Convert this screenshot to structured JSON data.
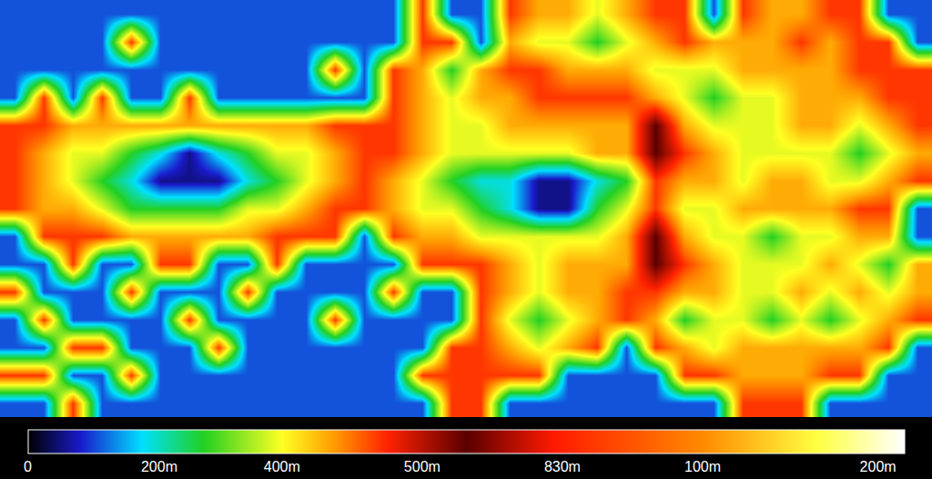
{
  "chart_data": {
    "type": "heatmap",
    "tick_labels": false,
    "cells": [
      [
        8,
        8,
        8,
        8,
        8,
        8,
        8,
        8,
        8,
        8,
        8,
        8,
        8,
        8,
        40,
        8,
        8,
        40,
        34,
        34,
        28,
        34,
        40,
        40,
        8,
        40,
        34,
        34,
        40,
        40,
        8,
        8
      ],
      [
        8,
        8,
        8,
        8,
        40,
        8,
        8,
        8,
        8,
        8,
        8,
        8,
        8,
        8,
        40,
        40,
        8,
        34,
        28,
        28,
        20,
        28,
        34,
        40,
        34,
        34,
        34,
        40,
        34,
        40,
        40,
        8
      ],
      [
        8,
        8,
        8,
        8,
        8,
        8,
        8,
        8,
        8,
        8,
        8,
        40,
        8,
        40,
        34,
        20,
        34,
        40,
        40,
        34,
        34,
        34,
        28,
        28,
        28,
        34,
        34,
        34,
        34,
        40,
        40,
        40
      ],
      [
        8,
        40,
        8,
        40,
        8,
        8,
        40,
        8,
        8,
        8,
        8,
        8,
        8,
        40,
        34,
        28,
        34,
        34,
        40,
        40,
        40,
        40,
        34,
        28,
        20,
        28,
        28,
        34,
        34,
        34,
        40,
        40
      ],
      [
        40,
        40,
        34,
        34,
        34,
        34,
        34,
        34,
        34,
        34,
        34,
        40,
        40,
        40,
        34,
        28,
        28,
        34,
        34,
        34,
        34,
        34,
        50,
        34,
        28,
        28,
        28,
        34,
        34,
        28,
        34,
        40
      ],
      [
        40,
        34,
        28,
        28,
        20,
        14,
        4,
        14,
        20,
        28,
        28,
        34,
        40,
        40,
        34,
        28,
        28,
        28,
        28,
        28,
        34,
        34,
        50,
        40,
        34,
        28,
        28,
        28,
        28,
        20,
        28,
        34
      ],
      [
        40,
        34,
        28,
        20,
        14,
        4,
        4,
        4,
        14,
        20,
        28,
        34,
        40,
        34,
        28,
        20,
        14,
        14,
        4,
        4,
        14,
        20,
        40,
        34,
        34,
        28,
        34,
        34,
        28,
        28,
        34,
        40
      ],
      [
        40,
        34,
        34,
        28,
        20,
        20,
        20,
        20,
        28,
        28,
        34,
        40,
        40,
        34,
        28,
        28,
        20,
        14,
        4,
        4,
        20,
        28,
        40,
        28,
        28,
        34,
        34,
        34,
        34,
        40,
        40,
        8
      ],
      [
        8,
        40,
        40,
        40,
        34,
        34,
        34,
        34,
        34,
        40,
        40,
        40,
        8,
        40,
        34,
        34,
        28,
        28,
        28,
        28,
        28,
        34,
        50,
        34,
        28,
        28,
        20,
        28,
        28,
        34,
        34,
        8
      ],
      [
        8,
        8,
        40,
        8,
        8,
        40,
        40,
        8,
        8,
        40,
        8,
        8,
        8,
        8,
        40,
        40,
        40,
        34,
        28,
        34,
        34,
        34,
        50,
        40,
        34,
        28,
        28,
        28,
        34,
        28,
        20,
        34
      ],
      [
        40,
        8,
        8,
        8,
        40,
        8,
        8,
        8,
        40,
        8,
        8,
        8,
        8,
        40,
        8,
        8,
        40,
        34,
        28,
        34,
        34,
        40,
        40,
        34,
        34,
        28,
        28,
        34,
        28,
        34,
        28,
        34
      ],
      [
        8,
        40,
        8,
        8,
        8,
        8,
        40,
        8,
        8,
        8,
        8,
        40,
        8,
        8,
        8,
        8,
        40,
        28,
        20,
        28,
        34,
        40,
        34,
        20,
        28,
        28,
        20,
        28,
        20,
        28,
        34,
        40
      ],
      [
        8,
        8,
        40,
        40,
        8,
        8,
        8,
        40,
        8,
        8,
        8,
        8,
        8,
        8,
        8,
        40,
        40,
        34,
        28,
        34,
        40,
        8,
        40,
        34,
        28,
        34,
        34,
        34,
        34,
        34,
        40,
        8
      ],
      [
        40,
        40,
        8,
        8,
        40,
        8,
        8,
        8,
        8,
        8,
        8,
        8,
        8,
        8,
        40,
        40,
        40,
        40,
        40,
        8,
        8,
        8,
        8,
        40,
        40,
        34,
        34,
        34,
        40,
        40,
        8,
        8
      ],
      [
        8,
        8,
        40,
        8,
        8,
        8,
        8,
        8,
        8,
        8,
        8,
        8,
        8,
        8,
        8,
        40,
        40,
        8,
        8,
        8,
        8,
        8,
        8,
        8,
        8,
        40,
        40,
        40,
        8,
        8,
        8,
        8
      ]
    ],
    "colorbar_range": [
      0,
      100
    ],
    "colorbar_ticks": [
      0,
      {
        "value": 15,
        "label": "200m"
      },
      {
        "value": 29,
        "label": "400m"
      },
      {
        "value": 45,
        "label": "500m"
      },
      {
        "value": 61,
        "label": "830m"
      },
      {
        "value": 77,
        "label": "100m"
      },
      {
        "value": 97,
        "label": "200m"
      }
    ]
  }
}
